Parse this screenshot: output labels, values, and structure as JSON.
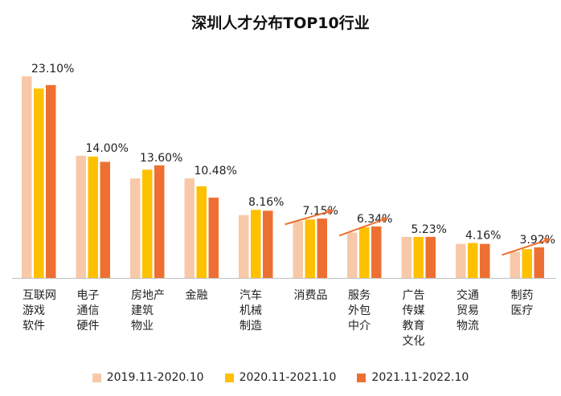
{
  "chart_data": {
    "type": "bar",
    "title": "深圳人才分布TOP10行业",
    "categories": [
      [
        "互联网",
        "游戏",
        "软件"
      ],
      [
        "电子",
        "通信",
        "硬件"
      ],
      [
        "房地产",
        "建筑",
        "物业"
      ],
      [
        "金融"
      ],
      [
        "汽车",
        "机械",
        "制造"
      ],
      [
        "消费品"
      ],
      [
        "服务",
        "外包",
        "中介"
      ],
      [
        "广告",
        "传媒",
        "教育",
        "文化"
      ],
      [
        "交通",
        "贸易",
        "物流"
      ],
      [
        "制药",
        "医疗"
      ]
    ],
    "series": [
      {
        "name": "2019.11-2020.10",
        "color": "#F8C9A8",
        "values": [
          23.1,
          14.0,
          11.4,
          11.4,
          7.2,
          6.5,
          5.2,
          4.7,
          3.9,
          3.0
        ]
      },
      {
        "name": "2020.11-2021.10",
        "color": "#FFC000",
        "values": [
          21.7,
          13.9,
          12.4,
          10.5,
          7.8,
          6.7,
          5.8,
          4.7,
          4.0,
          3.3
        ]
      },
      {
        "name": "2021.11-2022.10",
        "color": "#ED7032",
        "values": [
          22.1,
          13.3,
          12.9,
          9.2,
          7.7,
          6.8,
          5.9,
          4.7,
          3.9,
          3.5
        ]
      }
    ],
    "data_labels": [
      "23.10%",
      "14.00%",
      "13.60%",
      "10.48%",
      "8.16%",
      "7.15%",
      "6.34%",
      "5.23%",
      "4.16%",
      "3.92%"
    ],
    "trend_arrows": [
      5,
      6,
      9
    ],
    "arrow_color": "#ED7032",
    "ylim": [
      0,
      23.5
    ],
    "grid": false,
    "legend_position": "bottom",
    "xlabel": "",
    "ylabel": ""
  }
}
